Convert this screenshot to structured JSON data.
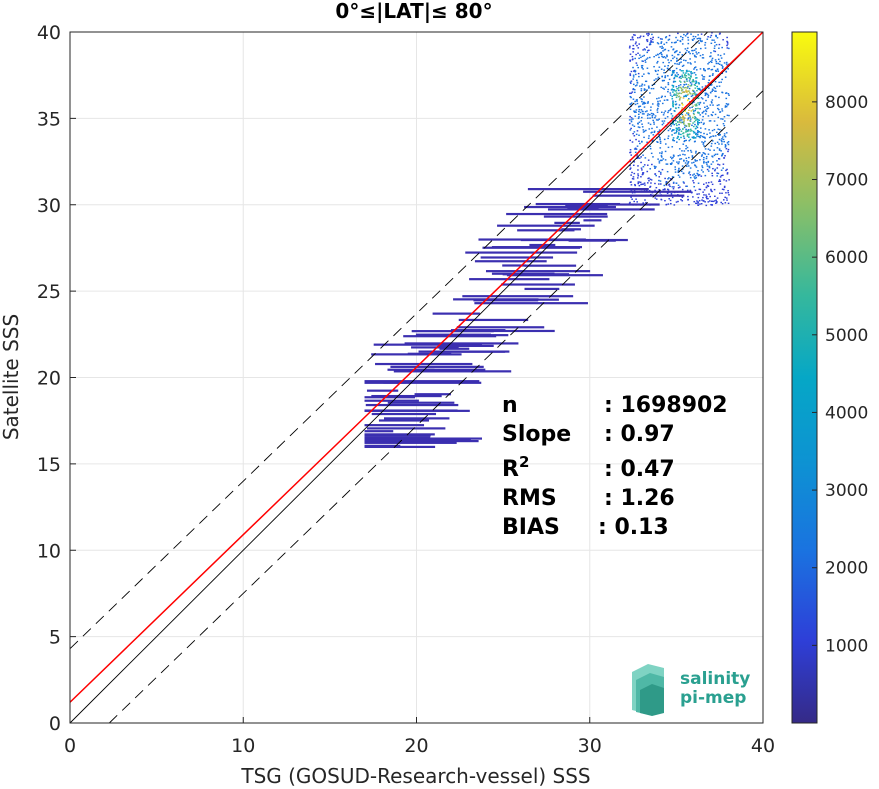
{
  "chart_data": {
    "type": "heatmap",
    "title": "0°≤|LAT|≤ 80°",
    "xlabel": "TSG (GOSUD-Research-vessel) SSS",
    "ylabel": "Satellite SSS",
    "xlim": [
      0,
      40
    ],
    "ylim": [
      0,
      40
    ],
    "xticks": [
      "0",
      "10",
      "20",
      "30",
      "40"
    ],
    "yticks": [
      "0",
      "5",
      "10",
      "15",
      "20",
      "25",
      "30",
      "35",
      "40"
    ],
    "grid": true,
    "colorbar": {
      "colormap": "parula",
      "range": [
        0,
        8900
      ],
      "ticks": [
        "1000",
        "2000",
        "3000",
        "4000",
        "5000",
        "6000",
        "7000",
        "8000"
      ],
      "tick_values": [
        1000,
        2000,
        3000,
        4000,
        5000,
        6000,
        7000,
        8000
      ]
    },
    "lines": [
      {
        "kind": "identity",
        "slope": 1,
        "intercept": 0,
        "color": "#000000",
        "style": "solid"
      },
      {
        "kind": "regression",
        "slope": 0.97,
        "intercept": 1.2,
        "color": "#ff0000",
        "style": "solid"
      },
      {
        "kind": "bound",
        "slope": 0.97,
        "intercept": 4.3,
        "color": "#000000",
        "style": "dashed"
      },
      {
        "kind": "bound",
        "slope": 0.97,
        "intercept": -2.2,
        "color": "#000000",
        "style": "dashed"
      }
    ],
    "density_core": {
      "x": 35.5,
      "y": 35.8,
      "peak": 8800
    },
    "density_extent": {
      "x_range": [
        17,
        38
      ],
      "y_range": [
        16,
        40
      ]
    }
  },
  "stats": {
    "n_label": "n",
    "n_value": ": 1698902",
    "slope_label": "Slope",
    "slope_value": ": 0.97",
    "r2_label": "R",
    "r2_sup": "2",
    "r2_value": ": 0.47",
    "rms_label": "RMS",
    "rms_value": ": 1.26",
    "bias_label": "BIAS",
    "bias_value": ": 0.13"
  },
  "logo": {
    "line1": "salinity",
    "line2": "pi-mep",
    "color": "#2aa090"
  }
}
